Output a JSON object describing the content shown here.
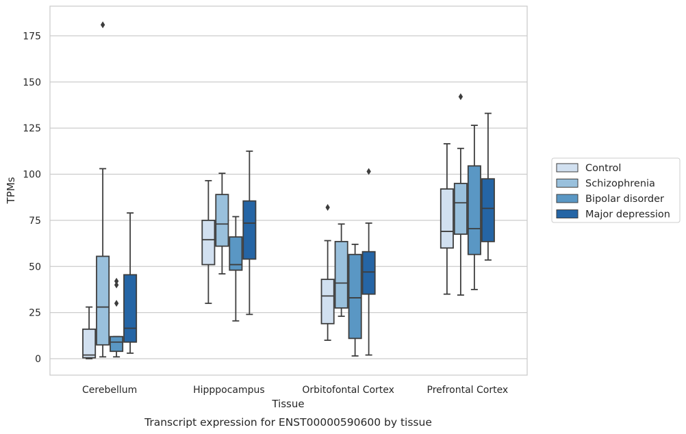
{
  "caption": "Transcript expression for ENST00000590600 by tissue",
  "chart_data": {
    "type": "box",
    "title": "",
    "xlabel": "Tissue",
    "ylabel": "TPMs",
    "ylim": [
      -9,
      189
    ],
    "yticks": [
      0,
      25,
      50,
      75,
      100,
      125,
      150,
      175
    ],
    "grid": "horizontal",
    "legend_position": "outside-right",
    "categories": [
      "Cerebellum",
      "Hipppocampus",
      "Orbitofontal Cortex",
      "Prefrontal Cortex"
    ],
    "series": [
      {
        "name": "Control",
        "color": "#d1e0f0",
        "boxes": [
          {
            "whislo": 0,
            "q1": 0.5,
            "med": 2,
            "q3": 16,
            "whishi": 28,
            "fliers": []
          },
          {
            "whislo": 30,
            "q1": 51,
            "med": 64.5,
            "q3": 75,
            "whishi": 96.5,
            "fliers": []
          },
          {
            "whislo": 10,
            "q1": 19,
            "med": 34,
            "q3": 43,
            "whishi": 64,
            "fliers": [
              82
            ]
          },
          {
            "whislo": 35,
            "q1": 60,
            "med": 69,
            "q3": 92,
            "whishi": 116.5,
            "fliers": []
          }
        ]
      },
      {
        "name": "Schizophrenia",
        "color": "#99c0dc",
        "boxes": [
          {
            "whislo": 1,
            "q1": 7.5,
            "med": 28,
            "q3": 55.5,
            "whishi": 103,
            "fliers": [
              181
            ]
          },
          {
            "whislo": 46,
            "q1": 61,
            "med": 73,
            "q3": 89,
            "whishi": 100.5,
            "fliers": []
          },
          {
            "whislo": 23,
            "q1": 27.5,
            "med": 41,
            "q3": 63.5,
            "whishi": 73,
            "fliers": []
          },
          {
            "whislo": 34.5,
            "q1": 67.5,
            "med": 84.5,
            "q3": 95,
            "whishi": 114,
            "fliers": [
              142
            ]
          }
        ]
      },
      {
        "name": "Bipolar disorder",
        "color": "#5a97c4",
        "boxes": [
          {
            "whislo": 1,
            "q1": 4,
            "med": 9,
            "q3": 12,
            "whishi": 12,
            "fliers": [
              30,
              40,
              42
            ]
          },
          {
            "whislo": 20.5,
            "q1": 48,
            "med": 51,
            "q3": 66,
            "whishi": 77,
            "fliers": []
          },
          {
            "whislo": 1.5,
            "q1": 11,
            "med": 33,
            "q3": 56.5,
            "whishi": 62,
            "fliers": []
          },
          {
            "whislo": 37.5,
            "q1": 56.5,
            "med": 70.5,
            "q3": 104.5,
            "whishi": 126.5,
            "fliers": []
          }
        ]
      },
      {
        "name": "Major depression",
        "color": "#2565a5",
        "boxes": [
          {
            "whislo": 3,
            "q1": 9,
            "med": 16.5,
            "q3": 45.5,
            "whishi": 79,
            "fliers": []
          },
          {
            "whislo": 24,
            "q1": 54,
            "med": 73.5,
            "q3": 85.5,
            "whishi": 112.5,
            "fliers": []
          },
          {
            "whislo": 2,
            "q1": 35,
            "med": 47,
            "q3": 58,
            "whishi": 73.5,
            "fliers": [
              101.5
            ]
          },
          {
            "whislo": 53.5,
            "q1": 63.5,
            "med": 81.5,
            "q3": 97.5,
            "whishi": 133,
            "fliers": []
          }
        ]
      }
    ]
  }
}
